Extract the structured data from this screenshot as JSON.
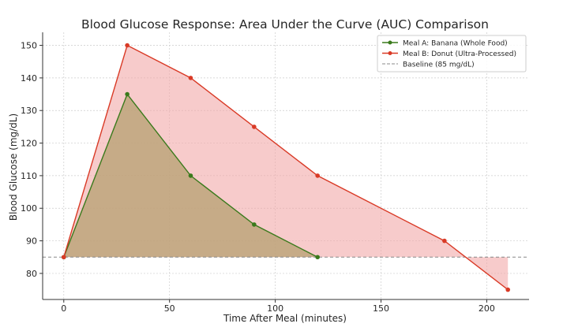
{
  "chart_data": {
    "type": "line",
    "title": "Blood Glucose Response: Area Under the Curve (AUC) Comparison",
    "xlabel": "Time After Meal (minutes)",
    "ylabel": "Blood Glucose (mg/dL)",
    "xlim": [
      -10,
      220
    ],
    "ylim": [
      72,
      154
    ],
    "xticks": [
      0,
      50,
      100,
      150,
      200
    ],
    "yticks": [
      80,
      90,
      100,
      110,
      120,
      130,
      140,
      150
    ],
    "grid": true,
    "grid_style": "dashed",
    "legend_position": "top-right",
    "series": [
      {
        "name": "Meal A: Banana (Whole Food)",
        "color": "#3a7a1c",
        "fill": "#b5a070",
        "x": [
          0,
          30,
          60,
          90,
          120
        ],
        "y": [
          85,
          135,
          110,
          95,
          85
        ]
      },
      {
        "name": "Meal B: Donut (Ultra-Processed)",
        "color": "#d93a26",
        "fill": "#f2a8a8",
        "x": [
          0,
          30,
          60,
          90,
          120,
          180,
          210
        ],
        "y": [
          85,
          150,
          140,
          125,
          110,
          90,
          75
        ]
      }
    ],
    "baseline": {
      "name": "Baseline (85 mg/dL)",
      "value": 85,
      "color": "#888888"
    }
  }
}
